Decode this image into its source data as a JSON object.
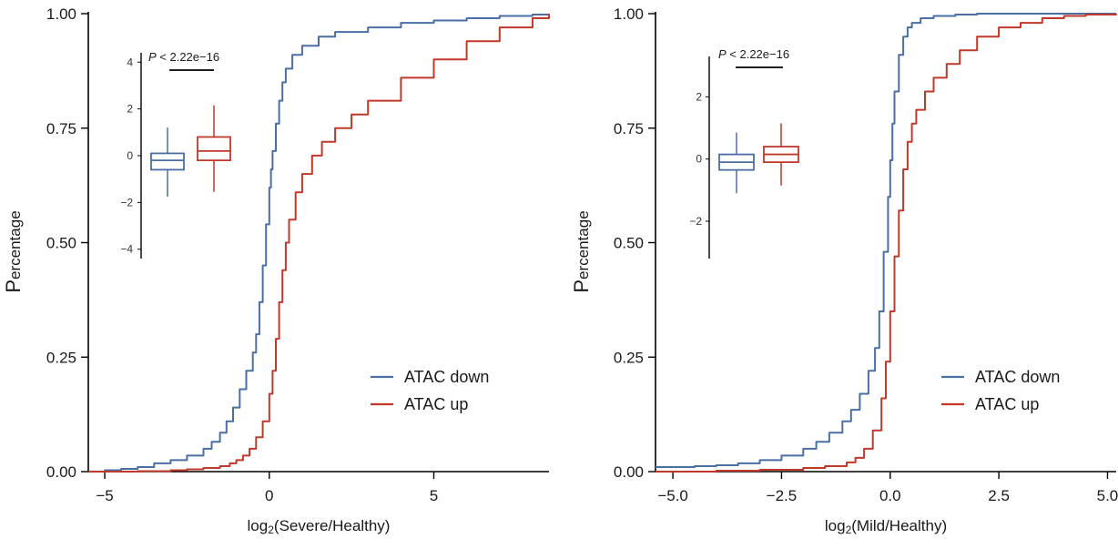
{
  "chart_data": [
    {
      "type": "line",
      "subtype": "ecdf",
      "xlabel": "log2(Severe/Healthy)",
      "xlabel_parts": {
        "prefix": "log",
        "sub": "2",
        "rest": "(Severe/Healthy)"
      },
      "ylabel": "Percentage",
      "ylabel_parts": {
        "first": "P",
        "rest": "ercentage"
      },
      "xlim": [
        -5.5,
        8.5
      ],
      "ylim": [
        0,
        1
      ],
      "xticks": [
        -5,
        0,
        5
      ],
      "xtick_labels": [
        "−5",
        "0",
        "5"
      ],
      "yticks": [
        0,
        0.25,
        0.5,
        0.75,
        1.0
      ],
      "ytick_labels": [
        "0.00",
        "0.25",
        "0.50",
        "0.75",
        "1.00"
      ],
      "legend_position": "bottom-right",
      "series": [
        {
          "name": "ATAC down",
          "color": "#4a6fa5",
          "x": [
            -5.5,
            -5.0,
            -4.5,
            -4.0,
            -3.5,
            -3.0,
            -2.5,
            -2.0,
            -1.75,
            -1.5,
            -1.3,
            -1.1,
            -0.9,
            -0.7,
            -0.5,
            -0.4,
            -0.3,
            -0.2,
            -0.1,
            0.0,
            0.05,
            0.1,
            0.2,
            0.3,
            0.4,
            0.5,
            0.7,
            1.0,
            1.5,
            2.0,
            3.0,
            4.0,
            5.0,
            6.0,
            7.0,
            8.0,
            8.5
          ],
          "y": [
            0.0,
            0.003,
            0.006,
            0.01,
            0.018,
            0.025,
            0.035,
            0.05,
            0.065,
            0.085,
            0.11,
            0.14,
            0.18,
            0.22,
            0.26,
            0.3,
            0.37,
            0.45,
            0.54,
            0.62,
            0.66,
            0.7,
            0.76,
            0.81,
            0.85,
            0.88,
            0.91,
            0.93,
            0.95,
            0.96,
            0.97,
            0.98,
            0.985,
            0.99,
            0.995,
            0.998,
            1.0
          ]
        },
        {
          "name": "ATAC up",
          "color": "#c0392b",
          "x": [
            -5.5,
            -5.0,
            -4.0,
            -3.0,
            -2.5,
            -2.0,
            -1.5,
            -1.2,
            -1.0,
            -0.8,
            -0.6,
            -0.4,
            -0.2,
            0.0,
            0.1,
            0.2,
            0.3,
            0.4,
            0.5,
            0.6,
            0.8,
            1.0,
            1.3,
            1.6,
            2.0,
            2.5,
            3.0,
            4.0,
            5.0,
            6.0,
            7.0,
            8.0,
            8.5
          ],
          "y": [
            0.0,
            0.0,
            0.001,
            0.003,
            0.005,
            0.008,
            0.012,
            0.018,
            0.025,
            0.035,
            0.05,
            0.075,
            0.11,
            0.17,
            0.22,
            0.29,
            0.37,
            0.44,
            0.5,
            0.55,
            0.61,
            0.65,
            0.69,
            0.72,
            0.75,
            0.78,
            0.81,
            0.86,
            0.9,
            0.94,
            0.97,
            0.99,
            1.0
          ]
        }
      ],
      "inset": {
        "type": "boxplot",
        "p_value_label": "P < 2.22e−16",
        "p_parts": {
          "p": "P",
          "rest": " < 2.22e−16"
        },
        "ylim": [
          -4.4,
          4.4
        ],
        "yticks": [
          -4,
          -2,
          0,
          2,
          4
        ],
        "ytick_labels": [
          "−4",
          "−2",
          "0",
          "2",
          "4"
        ],
        "boxes": [
          {
            "name": "ATAC down",
            "color": "#4a6fa5",
            "whisker_low": -1.75,
            "q1": -0.6,
            "median": -0.2,
            "q3": 0.1,
            "whisker_high": 1.2
          },
          {
            "name": "ATAC up",
            "color": "#c0392b",
            "whisker_low": -1.55,
            "q1": -0.2,
            "median": 0.2,
            "q3": 0.8,
            "whisker_high": 2.15
          }
        ]
      }
    },
    {
      "type": "line",
      "subtype": "ecdf",
      "xlabel": "log2(Mild/Healthy)",
      "xlabel_parts": {
        "prefix": "log",
        "sub": "2",
        "rest": "(Mild/Healthy)"
      },
      "ylabel": "Percentage",
      "ylabel_parts": {
        "first": "P",
        "rest": "ercentage"
      },
      "xlim": [
        -5.4,
        5.2
      ],
      "ylim": [
        0,
        1
      ],
      "xticks": [
        -5.0,
        -2.5,
        0.0,
        2.5,
        5.0
      ],
      "xtick_labels": [
        "−5.0",
        "−2.5",
        "0.0",
        "2.5",
        "5.0"
      ],
      "yticks": [
        0,
        0.25,
        0.5,
        0.75,
        1.0
      ],
      "ytick_labels": [
        "0.00",
        "0.25",
        "0.50",
        "0.75",
        "1.00"
      ],
      "legend_position": "bottom-right",
      "series": [
        {
          "name": "ATAC down",
          "color": "#4a6fa5",
          "x": [
            -5.4,
            -5.0,
            -4.5,
            -4.0,
            -3.5,
            -3.0,
            -2.5,
            -2.0,
            -1.7,
            -1.4,
            -1.1,
            -0.9,
            -0.7,
            -0.5,
            -0.35,
            -0.25,
            -0.15,
            -0.05,
            0.0,
            0.05,
            0.1,
            0.2,
            0.3,
            0.4,
            0.5,
            0.7,
            1.0,
            1.5,
            2.0,
            3.0,
            4.0,
            5.2
          ],
          "y": [
            0.01,
            0.01,
            0.012,
            0.014,
            0.018,
            0.025,
            0.035,
            0.05,
            0.065,
            0.085,
            0.11,
            0.135,
            0.17,
            0.22,
            0.27,
            0.35,
            0.48,
            0.6,
            0.68,
            0.76,
            0.83,
            0.91,
            0.95,
            0.97,
            0.98,
            0.99,
            0.995,
            0.998,
            1.0,
            1.0,
            1.0,
            1.0
          ]
        },
        {
          "name": "ATAC up",
          "color": "#c0392b",
          "x": [
            -5.4,
            -4.0,
            -3.0,
            -2.0,
            -1.5,
            -1.0,
            -0.8,
            -0.6,
            -0.4,
            -0.2,
            -0.1,
            0.0,
            0.1,
            0.2,
            0.3,
            0.4,
            0.5,
            0.6,
            0.8,
            1.0,
            1.3,
            1.6,
            2.0,
            2.5,
            3.0,
            3.5,
            4.0,
            4.5,
            5.2
          ],
          "y": [
            0.0,
            0.002,
            0.004,
            0.008,
            0.012,
            0.02,
            0.03,
            0.05,
            0.09,
            0.16,
            0.24,
            0.35,
            0.47,
            0.57,
            0.66,
            0.72,
            0.76,
            0.79,
            0.83,
            0.86,
            0.89,
            0.92,
            0.95,
            0.97,
            0.98,
            0.99,
            0.995,
            0.998,
            1.0
          ]
        }
      ],
      "inset": {
        "type": "boxplot",
        "p_value_label": "P < 2.22e−16",
        "p_parts": {
          "p": "P",
          "rest": " < 2.22e−16"
        },
        "ylim": [
          -3.2,
          3.3
        ],
        "yticks": [
          -2,
          0,
          2
        ],
        "ytick_labels": [
          "−2",
          "0",
          "2"
        ],
        "boxes": [
          {
            "name": "ATAC down",
            "color": "#4a6fa5",
            "whisker_low": -1.1,
            "q1": -0.35,
            "median": -0.1,
            "q3": 0.15,
            "whisker_high": 0.85
          },
          {
            "name": "ATAC up",
            "color": "#c0392b",
            "whisker_low": -0.85,
            "q1": -0.1,
            "median": 0.15,
            "q3": 0.4,
            "whisker_high": 1.15
          }
        ]
      }
    }
  ]
}
